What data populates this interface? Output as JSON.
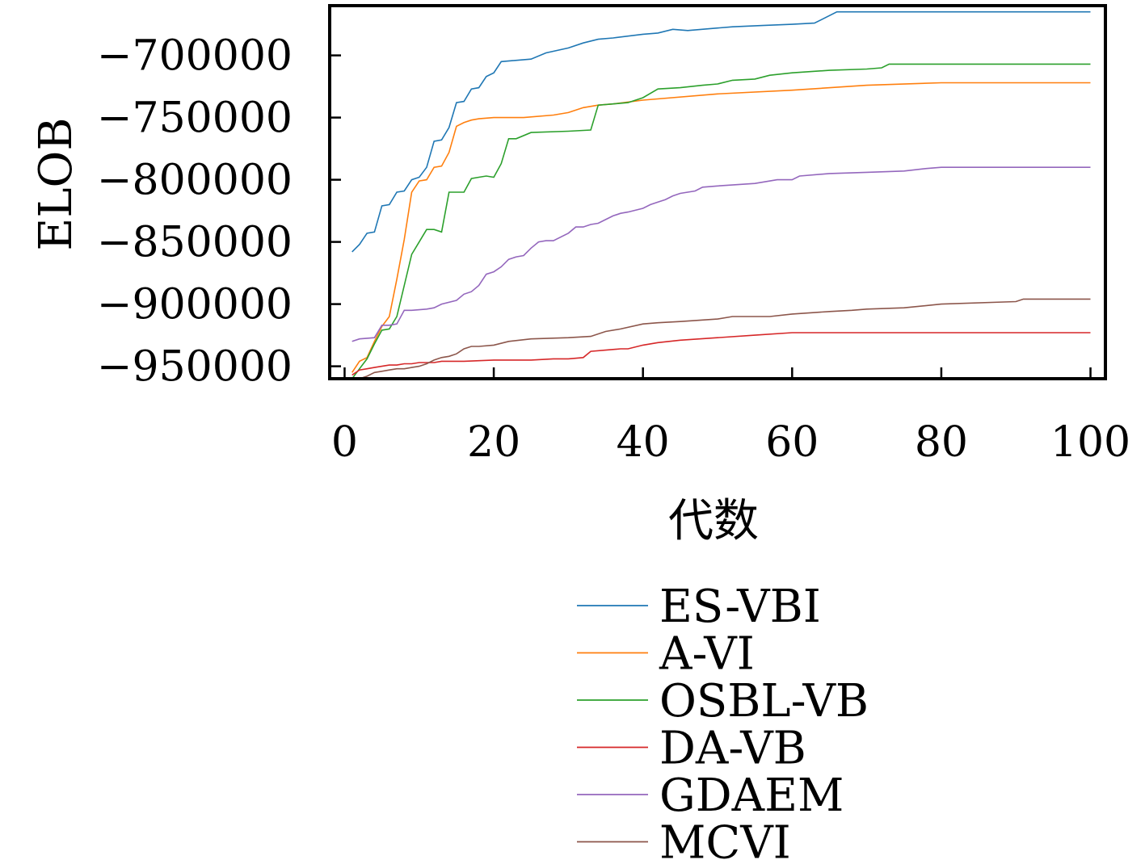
{
  "chart_data": {
    "type": "line",
    "title": "",
    "xlabel": "代数",
    "ylabel": "ELOB",
    "xlim": [
      -2,
      102
    ],
    "ylim": [
      -960000,
      -660000
    ],
    "xticks": [
      0,
      20,
      40,
      60,
      80,
      100
    ],
    "yticks": [
      -950000,
      -900000,
      -850000,
      -800000,
      -750000,
      -700000
    ],
    "xtick_labels": [
      "0",
      "20",
      "40",
      "60",
      "80",
      "100"
    ],
    "ytick_labels": [
      "−950000",
      "−900000",
      "−850000",
      "−800000",
      "−750000",
      "−700000"
    ],
    "grid": false,
    "legend_position": "below",
    "series": [
      {
        "name": "ES-VBI",
        "color": "#1f77b4",
        "x": [
          1,
          2,
          3,
          4,
          5,
          6,
          7,
          8,
          9,
          10,
          11,
          12,
          13,
          14,
          15,
          16,
          17,
          18,
          19,
          20,
          21,
          25,
          27,
          30,
          32,
          34,
          36,
          40,
          42,
          44,
          46,
          50,
          52,
          56,
          60,
          63,
          66,
          70,
          100
        ],
        "y": [
          -858000,
          -852000,
          -843000,
          -842000,
          -821000,
          -820000,
          -810000,
          -809000,
          -800000,
          -798000,
          -790000,
          -769000,
          -768000,
          -758000,
          -738000,
          -737000,
          -727000,
          -726000,
          -717000,
          -714000,
          -705000,
          -703000,
          -698000,
          -694000,
          -690000,
          -687000,
          -686000,
          -683000,
          -682000,
          -679000,
          -680000,
          -678000,
          -677000,
          -676000,
          -675000,
          -674000,
          -665000,
          -665000,
          -665000
        ]
      },
      {
        "name": "A-VI",
        "color": "#ff7f0e",
        "x": [
          1,
          2,
          3,
          4,
          5,
          6,
          7,
          8,
          9,
          10,
          11,
          12,
          13,
          14,
          15,
          16,
          17,
          18,
          20,
          24,
          28,
          30,
          32,
          34,
          36,
          40,
          50,
          60,
          70,
          80,
          100
        ],
        "y": [
          -955000,
          -946000,
          -943000,
          -930000,
          -918000,
          -910000,
          -880000,
          -848000,
          -810000,
          -801000,
          -800000,
          -790000,
          -789000,
          -778000,
          -757000,
          -754000,
          -752000,
          -751000,
          -750000,
          -750000,
          -748000,
          -746000,
          -742000,
          -740000,
          -739000,
          -736000,
          -731000,
          -728000,
          -724000,
          -722000,
          -722000
        ]
      },
      {
        "name": "OSBL-VB",
        "color": "#2ca02c",
        "x": [
          1,
          2,
          3,
          4,
          5,
          6,
          7,
          8,
          9,
          10,
          11,
          12,
          13,
          14,
          15,
          16,
          17,
          18,
          19,
          20,
          21,
          22,
          23,
          25,
          30,
          33,
          34,
          36,
          38,
          40,
          42,
          45,
          48,
          50,
          52,
          55,
          57,
          60,
          65,
          70,
          72,
          73,
          100
        ],
        "y": [
          -960000,
          -952000,
          -944000,
          -932000,
          -921000,
          -920000,
          -910000,
          -885000,
          -860000,
          -850000,
          -840000,
          -840000,
          -842000,
          -810000,
          -810000,
          -810000,
          -799000,
          -798000,
          -797000,
          -798000,
          -787000,
          -767000,
          -767000,
          -762000,
          -761000,
          -760000,
          -740000,
          -739000,
          -738000,
          -734000,
          -727000,
          -726000,
          -724000,
          -723000,
          -720000,
          -719000,
          -716000,
          -714000,
          -712000,
          -711000,
          -710000,
          -707000,
          -707000
        ]
      },
      {
        "name": "DA-VB",
        "color": "#d62728",
        "x": [
          1,
          2,
          3,
          4,
          5,
          6,
          7,
          8,
          9,
          10,
          11,
          12,
          13,
          14,
          15,
          16,
          20,
          25,
          28,
          30,
          32,
          33,
          35,
          37,
          38,
          40,
          42,
          45,
          50,
          55,
          60,
          65,
          70,
          100
        ],
        "y": [
          -957000,
          -953000,
          -952000,
          -951000,
          -950000,
          -949000,
          -949000,
          -948000,
          -948000,
          -947000,
          -947000,
          -947000,
          -946000,
          -946000,
          -946000,
          -946000,
          -945000,
          -945000,
          -944000,
          -944000,
          -943000,
          -938000,
          -937000,
          -936000,
          -936000,
          -933000,
          -931000,
          -929000,
          -927000,
          -925000,
          -923000,
          -923000,
          -923000,
          -923000
        ]
      },
      {
        "name": "GDAEM",
        "color": "#9467bd",
        "x": [
          1,
          2,
          4,
          5,
          6,
          7,
          8,
          9,
          11,
          12,
          13,
          15,
          16,
          17,
          18,
          19,
          20,
          21,
          22,
          23,
          24,
          25,
          26,
          27,
          28,
          30,
          31,
          32,
          33,
          34,
          35,
          36,
          37,
          38,
          40,
          41,
          42,
          43,
          44,
          45,
          47,
          48,
          50,
          55,
          58,
          60,
          61,
          65,
          70,
          75,
          78,
          80,
          100
        ],
        "y": [
          -930000,
          -928000,
          -927000,
          -917000,
          -917000,
          -916000,
          -905000,
          -905000,
          -904000,
          -903000,
          -900000,
          -897000,
          -892000,
          -890000,
          -885000,
          -876000,
          -874000,
          -870000,
          -864000,
          -862000,
          -861000,
          -855000,
          -850000,
          -849000,
          -849000,
          -843000,
          -838000,
          -838000,
          -836000,
          -835000,
          -832000,
          -829000,
          -827000,
          -826000,
          -823000,
          -820000,
          -818000,
          -816000,
          -813000,
          -811000,
          -809000,
          -806000,
          -805000,
          -803000,
          -800000,
          -800000,
          -797000,
          -795000,
          -794000,
          -793000,
          -791000,
          -790000,
          -790000
        ]
      },
      {
        "name": "MCVI",
        "color": "#8c564b",
        "x": [
          1,
          2,
          3,
          4,
          5,
          6,
          7,
          8,
          9,
          10,
          11,
          12,
          13,
          14,
          15,
          16,
          17,
          18,
          20,
          22,
          25,
          30,
          33,
          35,
          37,
          40,
          42,
          45,
          50,
          52,
          57,
          60,
          65,
          68,
          70,
          75,
          80,
          90,
          91,
          100
        ],
        "y": [
          -962000,
          -960000,
          -958000,
          -955000,
          -954000,
          -953000,
          -952000,
          -952000,
          -951000,
          -950000,
          -948000,
          -945000,
          -943000,
          -942000,
          -940000,
          -936000,
          -934000,
          -934000,
          -933000,
          -930000,
          -928000,
          -927000,
          -926000,
          -922000,
          -920000,
          -916000,
          -915000,
          -914000,
          -912000,
          -910000,
          -910000,
          -908000,
          -906000,
          -905000,
          -904000,
          -903000,
          -900000,
          -898000,
          -896000,
          -896000
        ]
      }
    ]
  }
}
